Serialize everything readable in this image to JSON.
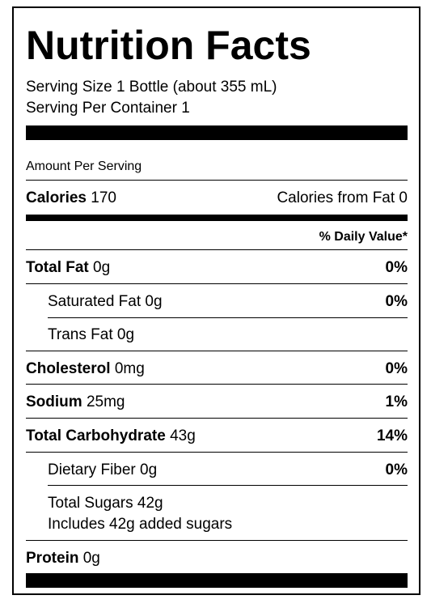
{
  "title": "Nutrition Facts",
  "serving_size": "Serving Size 1 Bottle (about 355 mL)",
  "servings_per_container": "Serving Per Container 1",
  "amount_per_serving": "Amount Per Serving",
  "calories": {
    "label": "Calories",
    "value": "170",
    "from_fat": "Calories from Fat 0"
  },
  "daily_value_header": "% Daily Value*",
  "nutrients": {
    "total_fat": {
      "label": "Total Fat",
      "amount": "0g",
      "dv": "0%"
    },
    "saturated_fat": {
      "label": "Saturated Fat 0g",
      "dv": "0%"
    },
    "trans_fat": {
      "label": "Trans Fat 0g"
    },
    "cholesterol": {
      "label": "Cholesterol",
      "amount": "0mg",
      "dv": "0%"
    },
    "sodium": {
      "label": "Sodium",
      "amount": "25mg",
      "dv": "1%"
    },
    "total_carbohydrate": {
      "label": "Total Carbohydrate",
      "amount": "43g",
      "dv": "14%"
    },
    "dietary_fiber": {
      "label": "Dietary Fiber 0g",
      "dv": "0%"
    },
    "total_sugars": {
      "label": "Total Sugars 42g"
    },
    "added_sugars": {
      "label": "Includes 42g added sugars"
    },
    "protein": {
      "label": "Protein",
      "amount": "0g"
    }
  }
}
